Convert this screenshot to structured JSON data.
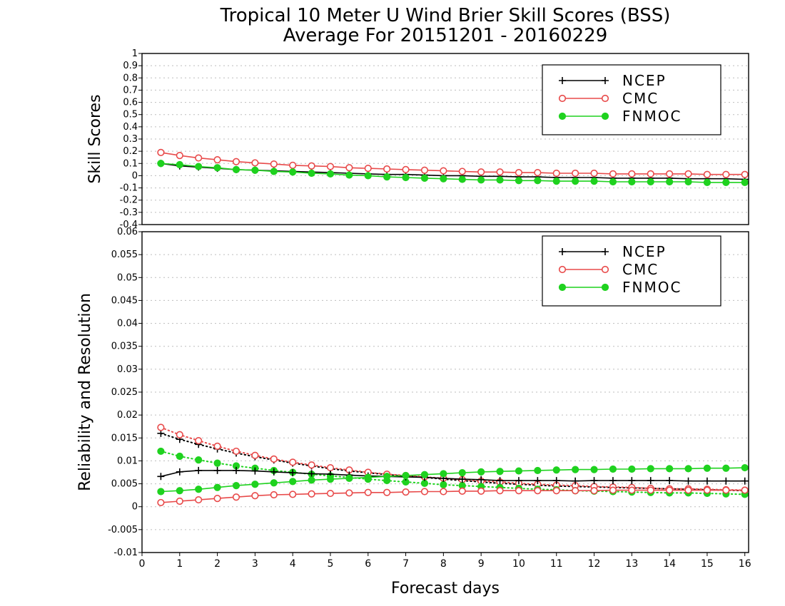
{
  "title_line1": "Tropical 10 Meter U Wind Brier Skill Scores (BSS)",
  "title_line2": "Average For 20151201 - 20160229",
  "colors": {
    "NCEP": "#000000",
    "CMC": "#e84a4a",
    "FNMOC": "#1fd21f"
  },
  "chart_data": [
    {
      "type": "line",
      "panel": "top",
      "ylabel": "Skill Scores",
      "ylim": [
        -0.4,
        1.0
      ],
      "yticks": [
        "-0.4",
        "-0.3",
        "-0.2",
        "-0.1",
        "0",
        "0.1",
        "0.2",
        "0.3",
        "0.4",
        "0.5",
        "0.6",
        "0.7",
        "0.8",
        "0.9",
        "1"
      ],
      "xlim": [
        0,
        16.1
      ],
      "grid": true,
      "legend_position": "top-right",
      "x": [
        0.5,
        1,
        1.5,
        2,
        2.5,
        3,
        3.5,
        4,
        4.5,
        5,
        5.5,
        6,
        6.5,
        7,
        7.5,
        8,
        8.5,
        9,
        9.5,
        10,
        10.5,
        11,
        11.5,
        12,
        12.5,
        13,
        13.5,
        14,
        14.5,
        15,
        15.5,
        16
      ],
      "series": [
        {
          "name": "NCEP",
          "marker": "plus",
          "values": [
            0.1,
            0.08,
            0.07,
            0.06,
            0.05,
            0.045,
            0.04,
            0.035,
            0.03,
            0.025,
            0.02,
            0.015,
            0.01,
            0.01,
            0.005,
            0.0,
            0.0,
            -0.005,
            -0.005,
            -0.01,
            -0.01,
            -0.015,
            -0.015,
            -0.015,
            -0.02,
            -0.02,
            -0.02,
            -0.02,
            -0.025,
            -0.025,
            -0.025,
            -0.03
          ]
        },
        {
          "name": "CMC",
          "marker": "open-circle",
          "values": [
            0.19,
            0.165,
            0.145,
            0.13,
            0.115,
            0.105,
            0.095,
            0.085,
            0.08,
            0.075,
            0.065,
            0.06,
            0.055,
            0.05,
            0.045,
            0.04,
            0.035,
            0.03,
            0.03,
            0.025,
            0.025,
            0.02,
            0.02,
            0.02,
            0.015,
            0.015,
            0.015,
            0.015,
            0.015,
            0.01,
            0.01,
            0.01
          ]
        },
        {
          "name": "FNMOC",
          "marker": "filled-circle",
          "values": [
            0.1,
            0.09,
            0.075,
            0.065,
            0.05,
            0.045,
            0.035,
            0.03,
            0.02,
            0.015,
            0.005,
            0.0,
            -0.01,
            -0.015,
            -0.02,
            -0.025,
            -0.03,
            -0.035,
            -0.035,
            -0.04,
            -0.04,
            -0.045,
            -0.045,
            -0.045,
            -0.05,
            -0.05,
            -0.05,
            -0.05,
            -0.05,
            -0.055,
            -0.055,
            -0.055
          ]
        }
      ]
    },
    {
      "type": "line",
      "panel": "bottom",
      "ylabel": "Reliability and Resolution",
      "xlabel": "Forecast days",
      "ylim": [
        -0.01,
        0.06
      ],
      "yticks": [
        "-0.01",
        "-0.005",
        "0",
        "0.005",
        "0.01",
        "0.015",
        "0.02",
        "0.025",
        "0.03",
        "0.035",
        "0.04",
        "0.045",
        "0.05",
        "0.055",
        "0.06"
      ],
      "xlim": [
        0,
        16.1
      ],
      "xticks": [
        "0",
        "1",
        "2",
        "3",
        "4",
        "5",
        "6",
        "7",
        "8",
        "9",
        "10",
        "11",
        "12",
        "13",
        "14",
        "15",
        "16"
      ],
      "grid": true,
      "legend_position": "top-right",
      "x": [
        0.5,
        1,
        1.5,
        2,
        2.5,
        3,
        3.5,
        4,
        4.5,
        5,
        5.5,
        6,
        6.5,
        7,
        7.5,
        8,
        8.5,
        9,
        9.5,
        10,
        10.5,
        11,
        11.5,
        12,
        12.5,
        13,
        13.5,
        14,
        14.5,
        15,
        15.5,
        16
      ],
      "series": [
        {
          "name": "NCEP",
          "metric": "reliability",
          "style": "dotted",
          "marker": "plus",
          "values": [
            0.016,
            0.0147,
            0.0136,
            0.0126,
            0.0117,
            0.0109,
            0.0102,
            0.0095,
            0.0089,
            0.0083,
            0.0078,
            0.0074,
            0.007,
            0.0067,
            0.0064,
            0.006,
            0.0057,
            0.0054,
            0.0051,
            0.0049,
            0.0047,
            0.0045,
            0.0044,
            0.0043,
            0.0042,
            0.0041,
            0.004,
            0.0039,
            0.0038,
            0.0037,
            0.0036,
            0.0035
          ]
        },
        {
          "name": "CMC",
          "metric": "reliability",
          "style": "dotted",
          "marker": "open-circle",
          "values": [
            0.0173,
            0.0157,
            0.0144,
            0.0132,
            0.0121,
            0.0112,
            0.0104,
            0.0097,
            0.0091,
            0.0085,
            0.008,
            0.0075,
            0.0071,
            0.0068,
            0.0065,
            0.0062,
            0.0059,
            0.0056,
            0.0054,
            0.0051,
            0.0049,
            0.0047,
            0.0046,
            0.0044,
            0.0043,
            0.0042,
            0.004,
            0.0039,
            0.0039,
            0.0038,
            0.0037,
            0.0036
          ]
        },
        {
          "name": "FNMOC",
          "metric": "reliability",
          "style": "dotted",
          "marker": "filled-circle",
          "values": [
            0.0121,
            0.011,
            0.0102,
            0.0095,
            0.0089,
            0.0084,
            0.0079,
            0.0075,
            0.0071,
            0.0067,
            0.0064,
            0.006,
            0.0057,
            0.0054,
            0.0051,
            0.0048,
            0.0046,
            0.0044,
            0.0042,
            0.004,
            0.0038,
            0.0037,
            0.0035,
            0.0034,
            0.0033,
            0.0032,
            0.0031,
            0.003,
            0.003,
            0.0029,
            0.0028,
            0.0027
          ]
        },
        {
          "name": "NCEP",
          "metric": "resolution",
          "style": "solid",
          "marker": "plus",
          "values": [
            0.0066,
            0.0076,
            0.0079,
            0.0079,
            0.0079,
            0.0078,
            0.0076,
            0.0074,
            0.0072,
            0.0071,
            0.0069,
            0.0067,
            0.0066,
            0.0065,
            0.0064,
            0.0062,
            0.006,
            0.0059,
            0.0057,
            0.0057,
            0.0057,
            0.0057,
            0.0056,
            0.0057,
            0.0057,
            0.0057,
            0.0057,
            0.0057,
            0.0056,
            0.0056,
            0.0056,
            0.0056
          ]
        },
        {
          "name": "CMC",
          "metric": "resolution",
          "style": "solid",
          "marker": "open-circle",
          "values": [
            0.0009,
            0.0012,
            0.0015,
            0.0018,
            0.0021,
            0.0024,
            0.0026,
            0.0027,
            0.0028,
            0.0029,
            0.003,
            0.0031,
            0.0031,
            0.0032,
            0.0033,
            0.0033,
            0.0034,
            0.0034,
            0.0035,
            0.0035,
            0.0035,
            0.0035,
            0.0035,
            0.0035,
            0.0036,
            0.0036,
            0.0036,
            0.0036,
            0.0036,
            0.0036,
            0.0036,
            0.0036
          ]
        },
        {
          "name": "FNMOC",
          "metric": "resolution",
          "style": "solid",
          "marker": "filled-circle",
          "values": [
            0.0033,
            0.0035,
            0.0038,
            0.0042,
            0.0046,
            0.0049,
            0.0052,
            0.0055,
            0.0058,
            0.006,
            0.0062,
            0.0064,
            0.0066,
            0.0068,
            0.007,
            0.0072,
            0.0074,
            0.0076,
            0.0077,
            0.0078,
            0.0079,
            0.008,
            0.0081,
            0.0081,
            0.0082,
            0.0082,
            0.0083,
            0.0083,
            0.0083,
            0.0084,
            0.0084,
            0.0085
          ]
        }
      ]
    }
  ]
}
